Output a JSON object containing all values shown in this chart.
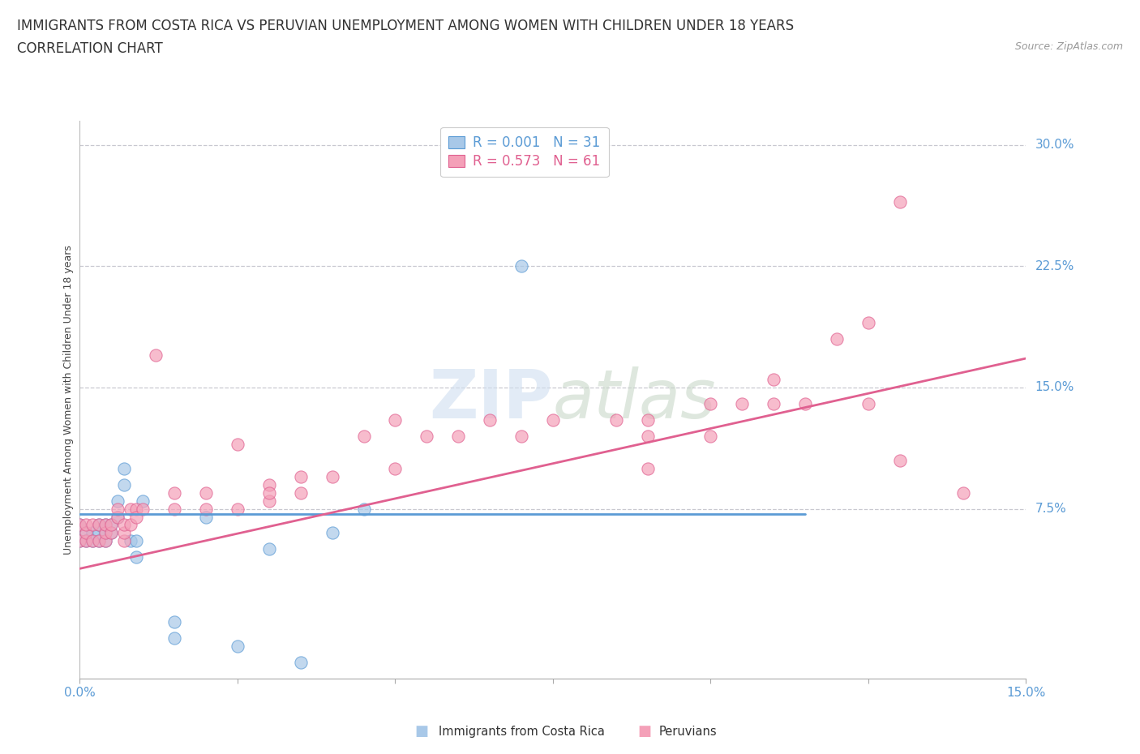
{
  "title_line1": "IMMIGRANTS FROM COSTA RICA VS PERUVIAN UNEMPLOYMENT AMONG WOMEN WITH CHILDREN UNDER 18 YEARS",
  "title_line2": "CORRELATION CHART",
  "source_text": "Source: ZipAtlas.com",
  "ylabel": "Unemployment Among Women with Children Under 18 years",
  "xlim": [
    0.0,
    0.15
  ],
  "ylim": [
    -0.03,
    0.315
  ],
  "xticks": [
    0.0,
    0.025,
    0.05,
    0.075,
    0.1,
    0.125,
    0.15
  ],
  "xtick_labels": [
    "0.0%",
    "",
    "",
    "",
    "",
    "",
    "15.0%"
  ],
  "ytick_positions": [
    0.075,
    0.15,
    0.225,
    0.3
  ],
  "ytick_labels": [
    "7.5%",
    "15.0%",
    "22.5%",
    "30.0%"
  ],
  "legend_r1": "R = 0.001",
  "legend_n1": "N = 31",
  "legend_r2": "R = 0.573",
  "legend_n2": "N = 61",
  "color_blue": "#a8c8e8",
  "color_pink": "#f4a0b8",
  "color_blue_line": "#5b9bd5",
  "color_pink_line": "#e06090",
  "color_blue_text": "#5b9bd5",
  "color_pink_text": "#e06090",
  "watermark": "ZIPatlas",
  "blue_scatter_x": [
    0.0,
    0.0,
    0.001,
    0.001,
    0.002,
    0.002,
    0.003,
    0.003,
    0.003,
    0.004,
    0.004,
    0.004,
    0.005,
    0.005,
    0.006,
    0.006,
    0.007,
    0.007,
    0.008,
    0.009,
    0.009,
    0.01,
    0.015,
    0.015,
    0.02,
    0.025,
    0.03,
    0.035,
    0.04,
    0.045,
    0.07
  ],
  "blue_scatter_y": [
    0.065,
    0.055,
    0.06,
    0.055,
    0.055,
    0.06,
    0.055,
    0.06,
    0.065,
    0.055,
    0.06,
    0.065,
    0.06,
    0.065,
    0.07,
    0.08,
    0.09,
    0.1,
    0.055,
    0.045,
    0.055,
    0.08,
    -0.005,
    0.005,
    0.07,
    -0.01,
    0.05,
    -0.02,
    0.06,
    0.075,
    0.225
  ],
  "pink_scatter_x": [
    0.0,
    0.0,
    0.001,
    0.001,
    0.001,
    0.002,
    0.002,
    0.003,
    0.003,
    0.004,
    0.004,
    0.004,
    0.005,
    0.005,
    0.006,
    0.006,
    0.007,
    0.007,
    0.007,
    0.008,
    0.008,
    0.009,
    0.009,
    0.01,
    0.012,
    0.015,
    0.015,
    0.02,
    0.02,
    0.025,
    0.025,
    0.03,
    0.03,
    0.03,
    0.035,
    0.035,
    0.04,
    0.045,
    0.05,
    0.05,
    0.055,
    0.06,
    0.065,
    0.07,
    0.075,
    0.085,
    0.09,
    0.09,
    0.09,
    0.1,
    0.1,
    0.105,
    0.11,
    0.11,
    0.115,
    0.12,
    0.125,
    0.125,
    0.13,
    0.13,
    0.14
  ],
  "pink_scatter_y": [
    0.055,
    0.065,
    0.055,
    0.06,
    0.065,
    0.055,
    0.065,
    0.065,
    0.055,
    0.055,
    0.06,
    0.065,
    0.06,
    0.065,
    0.07,
    0.075,
    0.055,
    0.06,
    0.065,
    0.065,
    0.075,
    0.075,
    0.07,
    0.075,
    0.17,
    0.085,
    0.075,
    0.075,
    0.085,
    0.115,
    0.075,
    0.08,
    0.09,
    0.085,
    0.085,
    0.095,
    0.095,
    0.12,
    0.13,
    0.1,
    0.12,
    0.12,
    0.13,
    0.12,
    0.13,
    0.13,
    0.13,
    0.12,
    0.1,
    0.14,
    0.12,
    0.14,
    0.14,
    0.155,
    0.14,
    0.18,
    0.19,
    0.14,
    0.265,
    0.105,
    0.085
  ],
  "blue_trend_x": [
    0.0,
    0.115
  ],
  "blue_trend_y": [
    0.072,
    0.072
  ],
  "pink_trend_x": [
    0.0,
    0.15
  ],
  "pink_trend_y": [
    0.038,
    0.168
  ],
  "bg_color": "#ffffff",
  "grid_color": "#c8c8d0",
  "title_fontsize": 12,
  "axis_label_fontsize": 9,
  "tick_fontsize": 11,
  "legend_fontsize": 12
}
